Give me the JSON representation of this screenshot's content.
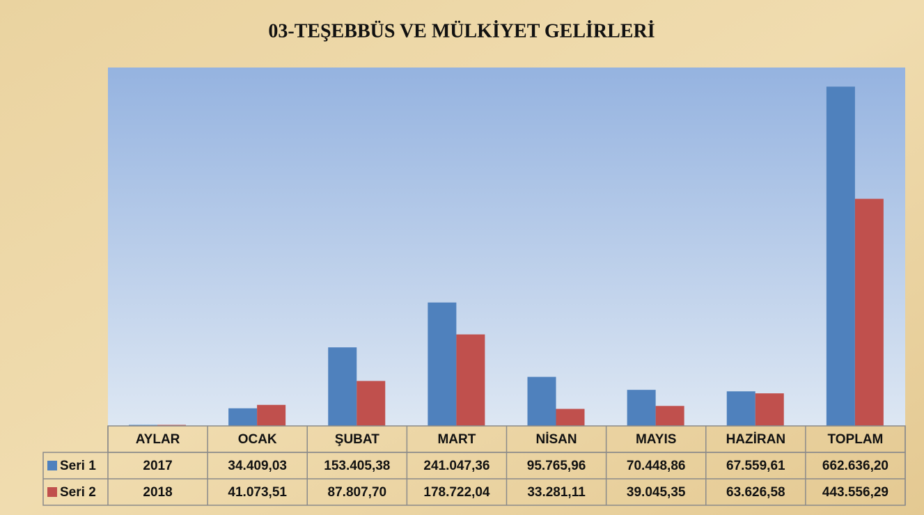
{
  "chart_data": {
    "type": "bar",
    "title": "03-TEŞEBBÜS VE MÜLKİYET GELİRLERİ",
    "categories": [
      "AYLAR",
      "OCAK",
      "ŞUBAT",
      "MART",
      "NİSAN",
      "MAYIS",
      "HAZİRAN",
      "TOPLAM"
    ],
    "series": [
      {
        "name": "Seri 1",
        "color": "#4f81bd",
        "values": [
          2017,
          34409.03,
          153405.38,
          241047.36,
          95765.96,
          70448.86,
          67559.61,
          662636.2
        ],
        "value_labels": [
          "2017",
          "34.409,03",
          "153.405,38",
          "241.047,36",
          "95.765,96",
          "70.448,86",
          "67.559,61",
          "662.636,20"
        ]
      },
      {
        "name": "Seri 2",
        "color": "#c0504d",
        "values": [
          2018,
          41073.51,
          87807.7,
          178722.04,
          33281.11,
          39045.35,
          63626.58,
          443556.29
        ],
        "value_labels": [
          "2018",
          "41.073,51",
          "87.807,70",
          "178.722,04",
          "33.281,11",
          "39.045,35",
          "63.626,58",
          "443.556,29"
        ]
      }
    ],
    "ylim": [
      0,
      700000
    ]
  }
}
